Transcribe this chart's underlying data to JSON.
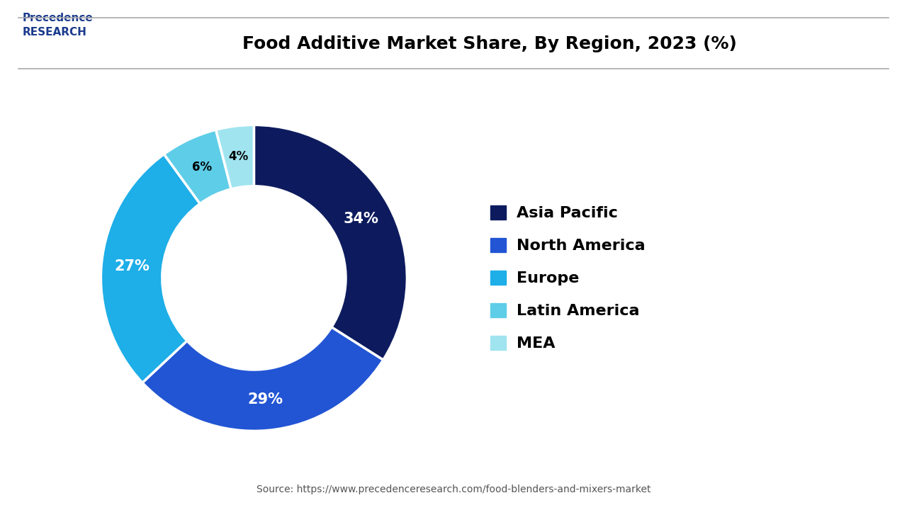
{
  "title": "Food Additive Market Share, By Region, 2023 (%)",
  "labels": [
    "Asia Pacific",
    "North America",
    "Europe",
    "Latin America",
    "MEA"
  ],
  "values": [
    34,
    29,
    27,
    6,
    4
  ],
  "colors": [
    "#0d1b5e",
    "#2255d4",
    "#1eaee8",
    "#5ecde8",
    "#a0e4f0"
  ],
  "pct_labels": [
    "34%",
    "29%",
    "27%",
    "6%",
    "4%"
  ],
  "pct_colors": [
    "white",
    "white",
    "white",
    "black",
    "black"
  ],
  "source_text": "Source: https://www.precedenceresearch.com/food-blenders-and-mixers-market",
  "background_color": "#ffffff",
  "title_color": "#000000",
  "legend_label_color": "#000000",
  "donut_width": 0.4,
  "start_angle": 90
}
